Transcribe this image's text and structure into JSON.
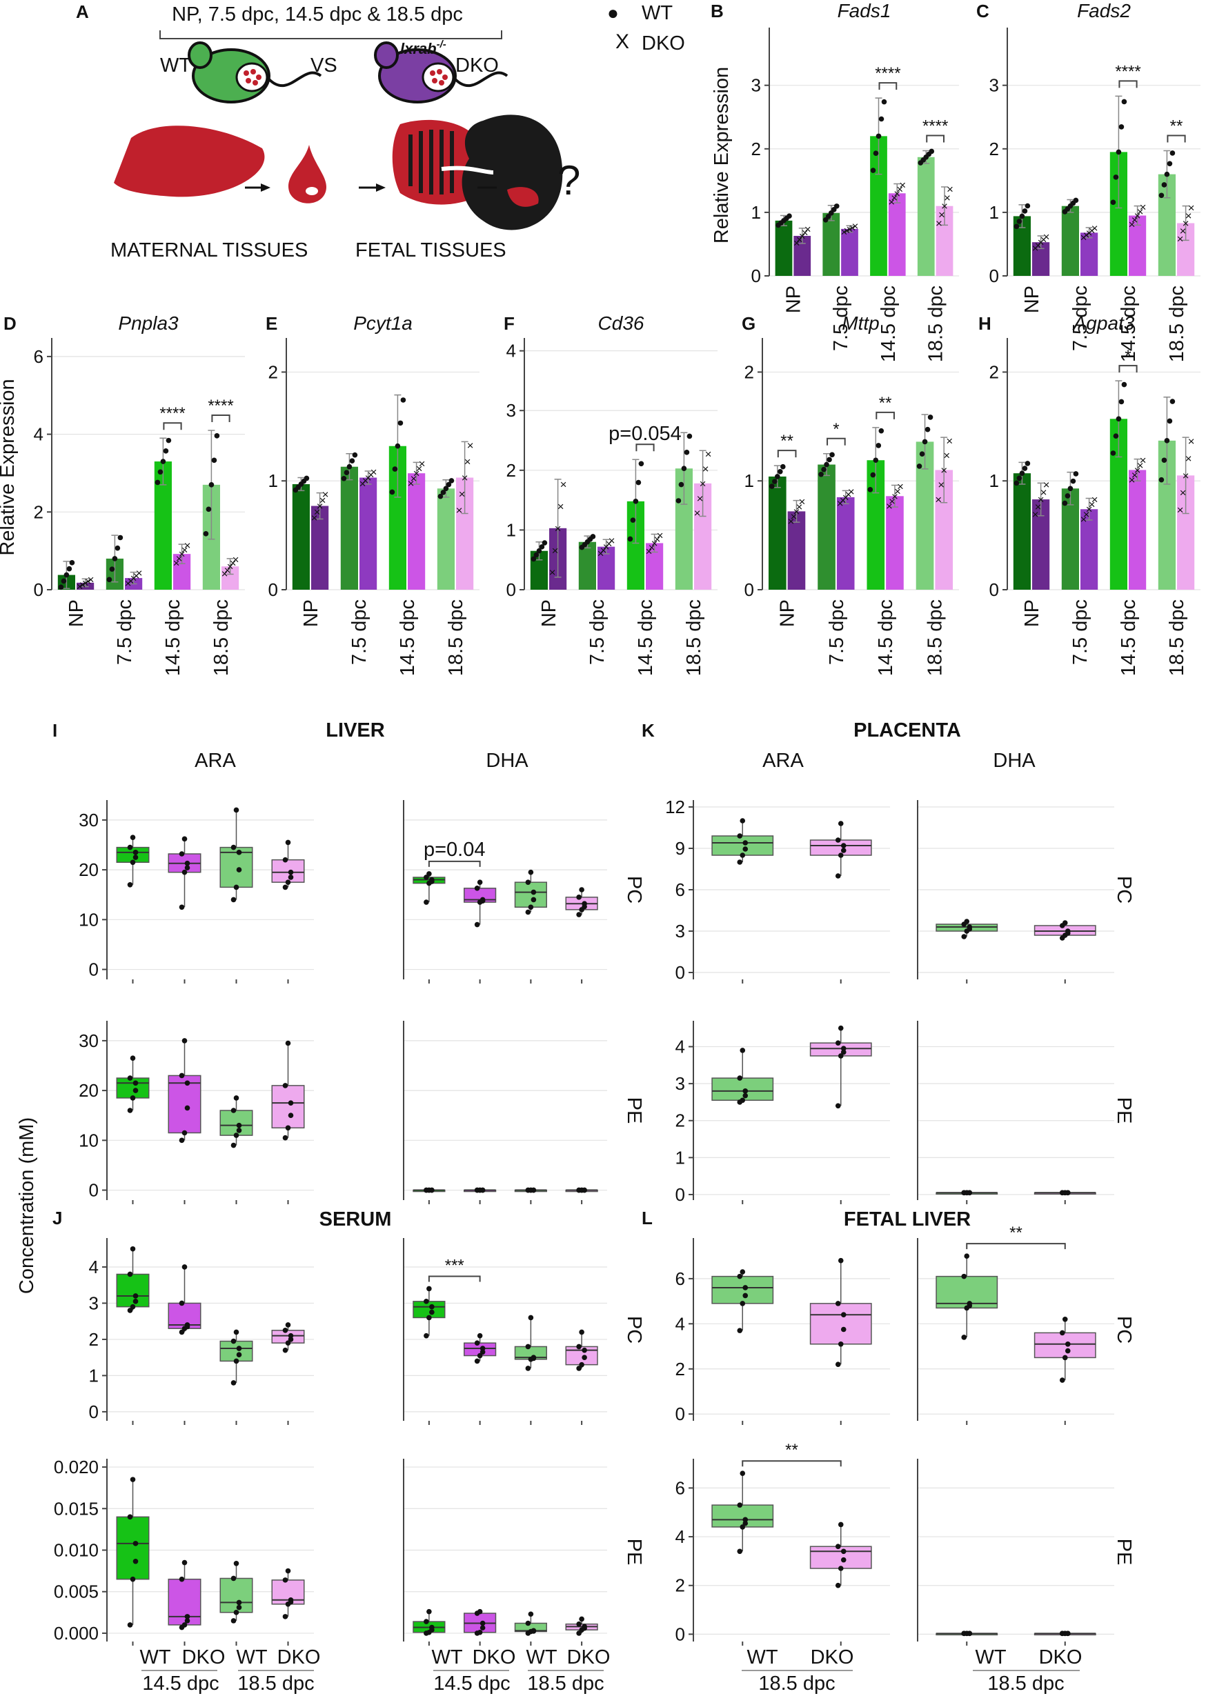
{
  "colors": {
    "np_wt": "#0b6b10",
    "np_dko": "#6a2a8e",
    "d75_wt": "#2f8f2f",
    "d75_dko": "#8e3ac0",
    "d145_wt": "#16c216",
    "d145_dko": "#cc55e6",
    "d185_wt": "#7ccf7c",
    "d185_dko": "#eeaaee",
    "liver_red": "#c0202c",
    "fetus_black": "#1a1a1a",
    "mouse_wt": "#4caf50",
    "mouse_dko": "#7b3fa3"
  },
  "panelA": {
    "letter": "A",
    "timepoints": "NP, 7.5 dpc, 14.5 dpc & 18.5 dpc",
    "wt": "WT",
    "vs": "VS",
    "gene": "lxrab",
    "gene_sup": "-/-",
    "dko": "DKO",
    "maternal": "MATERNAL TISSUES",
    "fetal": "FETAL TISSUES",
    "question": "?",
    "legend_wt_symbol": "●",
    "legend_wt": "WT",
    "legend_dko_symbol": "X",
    "legend_dko": "DKO"
  },
  "chart_data": [
    {
      "type": "bar",
      "panel": "B",
      "title": "Fads1",
      "ylabel": "Relative Expression",
      "ylim": [
        0,
        3.8
      ],
      "yticks": [
        0,
        1,
        2,
        3
      ],
      "categories": [
        "NP",
        "7.5 dpc",
        "14.5 dpc",
        "18.5 dpc"
      ],
      "series": [
        {
          "name": "WT",
          "values": [
            0.87,
            0.99,
            2.2,
            1.87
          ],
          "err": [
            0.08,
            0.12,
            0.6,
            0.1
          ]
        },
        {
          "name": "DKO",
          "values": [
            0.63,
            0.74,
            1.3,
            1.1
          ],
          "err": [
            0.12,
            0.05,
            0.15,
            0.3
          ]
        }
      ],
      "annotations": [
        {
          "group": 2,
          "label": "****"
        },
        {
          "group": 3,
          "label": "****"
        }
      ]
    },
    {
      "type": "bar",
      "panel": "C",
      "title": "Fads2",
      "ylabel": "",
      "ylim": [
        0,
        3.8
      ],
      "yticks": [
        0,
        1,
        2,
        3
      ],
      "categories": [
        "NP",
        "7.5 dpc",
        "14.5 dpc",
        "18.5 dpc"
      ],
      "series": [
        {
          "name": "WT",
          "values": [
            0.94,
            1.1,
            1.95,
            1.6
          ],
          "err": [
            0.18,
            0.1,
            0.88,
            0.37
          ]
        },
        {
          "name": "DKO",
          "values": [
            0.53,
            0.68,
            0.95,
            0.83
          ],
          "err": [
            0.1,
            0.08,
            0.15,
            0.27
          ]
        }
      ],
      "annotations": [
        {
          "group": 2,
          "label": "****"
        },
        {
          "group": 3,
          "label": "**"
        }
      ]
    },
    {
      "type": "bar",
      "panel": "D",
      "title": "Pnpla3",
      "ylabel": "Relative Expression",
      "ylim": [
        0,
        6.3
      ],
      "yticks": [
        0,
        2,
        4,
        6
      ],
      "categories": [
        "NP",
        "7.5 dpc",
        "14.5 dpc",
        "18.5 dpc"
      ],
      "series": [
        {
          "name": "WT",
          "values": [
            0.38,
            0.8,
            3.3,
            2.7
          ],
          "err": [
            0.35,
            0.6,
            0.6,
            1.4
          ]
        },
        {
          "name": "DKO",
          "values": [
            0.18,
            0.3,
            0.92,
            0.6
          ],
          "err": [
            0.1,
            0.15,
            0.25,
            0.2
          ]
        }
      ],
      "annotations": [
        {
          "group": 2,
          "label": "****"
        },
        {
          "group": 3,
          "label": "****"
        }
      ]
    },
    {
      "type": "bar",
      "panel": "E",
      "title": "Pcyt1a",
      "ylabel": "",
      "ylim": [
        0,
        2.25
      ],
      "yticks": [
        0,
        1,
        2
      ],
      "categories": [
        "NP",
        "7.5 dpc",
        "14.5 dpc",
        "18.5 dpc"
      ],
      "series": [
        {
          "name": "WT",
          "values": [
            0.97,
            1.13,
            1.32,
            0.93
          ],
          "err": [
            0.06,
            0.12,
            0.47,
            0.08
          ]
        },
        {
          "name": "DKO",
          "values": [
            0.77,
            1.03,
            1.07,
            1.03
          ],
          "err": [
            0.12,
            0.06,
            0.1,
            0.33
          ]
        }
      ],
      "annotations": []
    },
    {
      "type": "bar",
      "panel": "F",
      "title": "Cd36",
      "ylabel": "",
      "ylim": [
        0,
        4.1
      ],
      "yticks": [
        0,
        1,
        2,
        3,
        4
      ],
      "categories": [
        "NP",
        "7.5 dpc",
        "14.5 dpc",
        "18.5 dpc"
      ],
      "series": [
        {
          "name": "WT",
          "values": [
            0.65,
            0.8,
            1.48,
            2.03
          ],
          "err": [
            0.15,
            0.1,
            0.7,
            0.6
          ]
        },
        {
          "name": "DKO",
          "values": [
            1.03,
            0.72,
            0.78,
            1.78
          ],
          "err": [
            0.82,
            0.12,
            0.15,
            0.55
          ]
        }
      ],
      "annotations": [
        {
          "group": 2,
          "label": "p=0.054"
        }
      ]
    },
    {
      "type": "bar",
      "panel": "G",
      "title": "Mttp",
      "ylabel": "",
      "ylim": [
        0,
        2.25
      ],
      "yticks": [
        0,
        1,
        2
      ],
      "categories": [
        "NP",
        "7.5 dpc",
        "14.5 dpc",
        "18.5 dpc"
      ],
      "series": [
        {
          "name": "WT",
          "values": [
            1.04,
            1.15,
            1.19,
            1.36
          ],
          "err": [
            0.1,
            0.1,
            0.3,
            0.25
          ]
        },
        {
          "name": "DKO",
          "values": [
            0.72,
            0.85,
            0.86,
            1.1
          ],
          "err": [
            0.1,
            0.06,
            0.1,
            0.3
          ]
        }
      ],
      "annotations": [
        {
          "group": 0,
          "label": "**"
        },
        {
          "group": 1,
          "label": "*"
        },
        {
          "group": 2,
          "label": "**"
        }
      ]
    },
    {
      "type": "bar",
      "panel": "H",
      "title": "Agpat3",
      "ylabel": "",
      "ylim": [
        0,
        2.25
      ],
      "yticks": [
        0,
        1,
        2
      ],
      "categories": [
        "NP",
        "7.5 dpc",
        "14.5 dpc",
        "18.5 dpc"
      ],
      "series": [
        {
          "name": "WT",
          "values": [
            1.07,
            0.93,
            1.57,
            1.37
          ],
          "err": [
            0.1,
            0.15,
            0.35,
            0.4
          ]
        },
        {
          "name": "DKO",
          "values": [
            0.83,
            0.74,
            1.1,
            1.05
          ],
          "err": [
            0.15,
            0.1,
            0.1,
            0.35
          ]
        }
      ],
      "annotations": [
        {
          "group": 2,
          "label": "*"
        }
      ]
    },
    {
      "type": "box",
      "panel": "I",
      "tissue": "LIVER",
      "fa": "ARA",
      "lipid": "PC",
      "ylim": [
        -2,
        34
      ],
      "yticks": [
        0,
        10,
        20,
        30
      ],
      "groups": [
        "WT 14.5 dpc",
        "DKO 14.5 dpc",
        "WT 18.5 dpc",
        "DKO 18.5 dpc"
      ],
      "boxes": [
        [
          17,
          21.5,
          23.5,
          24.5,
          26.5
        ],
        [
          12.5,
          19.5,
          21.3,
          23.2,
          26.2
        ],
        [
          14,
          16.5,
          23.5,
          24.5,
          32
        ],
        [
          16.5,
          17.5,
          19.5,
          22,
          25.5
        ]
      ]
    },
    {
      "type": "box",
      "panel": "I",
      "tissue": "LIVER",
      "fa": "DHA",
      "lipid": "PC",
      "ylim": [
        -2,
        34
      ],
      "yticks": [
        0,
        10,
        20,
        30
      ],
      "groups": [
        "WT 14.5 dpc",
        "DKO 14.5 dpc",
        "WT 18.5 dpc",
        "DKO 18.5 dpc"
      ],
      "boxes": [
        [
          13.5,
          17.3,
          18,
          18.5,
          19.2
        ],
        [
          9,
          13.5,
          14,
          16.3,
          17.5
        ],
        [
          11.5,
          12.5,
          15.5,
          17.5,
          19.5
        ],
        [
          11,
          12,
          13.2,
          14.5,
          16
        ]
      ],
      "annotations": [
        {
          "from": 0,
          "to": 1,
          "label": "p=0.04"
        }
      ]
    },
    {
      "type": "box",
      "panel": "I",
      "tissue": "LIVER",
      "fa": "ARA",
      "lipid": "PE",
      "ylim": [
        -2,
        34
      ],
      "yticks": [
        0,
        10,
        20,
        30
      ],
      "groups": [
        "WT 14.5 dpc",
        "DKO 14.5 dpc",
        "WT 18.5 dpc",
        "DKO 18.5 dpc"
      ],
      "boxes": [
        [
          16,
          18.5,
          21.5,
          22.5,
          26.5
        ],
        [
          10,
          11.5,
          21.5,
          23,
          30
        ],
        [
          9,
          11,
          13,
          16,
          18.5
        ],
        [
          10.5,
          12.5,
          17.5,
          21,
          29.5
        ]
      ]
    },
    {
      "type": "box",
      "panel": "I",
      "tissue": "LIVER",
      "fa": "DHA",
      "lipid": "PE",
      "ylim": [
        -2,
        34
      ],
      "yticks": [
        0,
        10,
        20,
        30
      ],
      "groups": [
        "WT 14.5 dpc",
        "DKO 14.5 dpc",
        "WT 18.5 dpc",
        "DKO 18.5 dpc"
      ],
      "boxes": [
        [
          0,
          0,
          0,
          0,
          0
        ],
        [
          0,
          0,
          0,
          0,
          0
        ],
        [
          0,
          0,
          0,
          0,
          0
        ],
        [
          0,
          0,
          0,
          0,
          0
        ]
      ]
    },
    {
      "type": "box",
      "panel": "K",
      "tissue": "PLACENTA",
      "fa": "ARA",
      "lipid": "PC",
      "ylim": [
        -0.5,
        12.5
      ],
      "yticks": [
        0,
        3,
        6,
        9,
        12
      ],
      "groups": [
        "WT 18.5 dpc",
        "DKO 18.5 dpc"
      ],
      "boxes": [
        [
          8,
          8.5,
          9.4,
          9.9,
          11
        ],
        [
          7,
          8.5,
          9.2,
          9.6,
          10.8
        ]
      ]
    },
    {
      "type": "box",
      "panel": "K",
      "tissue": "PLACENTA",
      "fa": "DHA",
      "lipid": "PC",
      "ylim": [
        -0.5,
        12.5
      ],
      "yticks": [
        0,
        3,
        6,
        9,
        12
      ],
      "groups": [
        "WT 18.5 dpc",
        "DKO 18.5 dpc"
      ],
      "boxes": [
        [
          2.6,
          3,
          3.3,
          3.5,
          3.7
        ],
        [
          2.5,
          2.7,
          3,
          3.4,
          3.6
        ]
      ]
    },
    {
      "type": "box",
      "panel": "K",
      "tissue": "PLACENTA",
      "fa": "ARA",
      "lipid": "PE",
      "ylim": [
        -0.15,
        4.7
      ],
      "yticks": [
        0,
        1,
        2,
        3,
        4
      ],
      "groups": [
        "WT 18.5 dpc",
        "DKO 18.5 dpc"
      ],
      "boxes": [
        [
          2.5,
          2.55,
          2.8,
          3.15,
          3.9
        ],
        [
          2.4,
          3.75,
          3.95,
          4.1,
          4.5
        ]
      ]
    },
    {
      "type": "box",
      "panel": "K",
      "tissue": "PLACENTA",
      "fa": "DHA",
      "lipid": "PE",
      "ylim": [
        -0.15,
        4.7
      ],
      "yticks": [
        0,
        1,
        2,
        3,
        4
      ],
      "groups": [
        "WT 18.5 dpc",
        "DKO 18.5 dpc"
      ],
      "boxes": [
        [
          0.05,
          0.05,
          0.05,
          0.05,
          0.05
        ],
        [
          0.05,
          0.05,
          0.05,
          0.05,
          0.05
        ]
      ]
    },
    {
      "type": "box",
      "panel": "J",
      "tissue": "SERUM",
      "fa": "ARA",
      "lipid": "PC",
      "ylim": [
        -0.25,
        4.8
      ],
      "yticks": [
        0,
        1,
        2,
        3,
        4
      ],
      "groups": [
        "WT 14.5 dpc",
        "DKO 14.5 dpc",
        "WT 18.5 dpc",
        "DKO 18.5 dpc"
      ],
      "boxes": [
        [
          2.8,
          2.9,
          3.2,
          3.8,
          4.5
        ],
        [
          2.2,
          2.3,
          2.4,
          3,
          4
        ],
        [
          0.8,
          1.4,
          1.75,
          1.95,
          2.2
        ],
        [
          1.7,
          1.9,
          2.1,
          2.25,
          2.4
        ]
      ]
    },
    {
      "type": "box",
      "panel": "J",
      "tissue": "SERUM",
      "fa": "DHA",
      "lipid": "PC",
      "ylim": [
        -0.25,
        4.8
      ],
      "yticks": [
        0,
        1,
        2,
        3,
        4
      ],
      "groups": [
        "WT 14.5 dpc",
        "DKO 14.5 dpc",
        "WT 18.5 dpc",
        "DKO 18.5 dpc"
      ],
      "boxes": [
        [
          2.1,
          2.6,
          2.9,
          3.05,
          3.4
        ],
        [
          1.4,
          1.55,
          1.75,
          1.9,
          2.1
        ],
        [
          1.2,
          1.45,
          1.5,
          1.8,
          2.6
        ],
        [
          1.2,
          1.3,
          1.7,
          1.8,
          2.2
        ]
      ],
      "annotations": [
        {
          "from": 0,
          "to": 1,
          "label": "***"
        }
      ]
    },
    {
      "type": "box",
      "panel": "J",
      "tissue": "SERUM",
      "fa": "ARA",
      "lipid": "PE",
      "ylim": [
        -0.001,
        0.021
      ],
      "yticks": [
        0,
        0.005,
        0.01,
        0.015,
        0.02
      ],
      "ytick_labels": [
        "0.000",
        "0.005",
        "0.010",
        "0.015",
        "0.020"
      ],
      "groups": [
        "WT 14.5 dpc",
        "DKO 14.5 dpc",
        "WT 18.5 dpc",
        "DKO 18.5 dpc"
      ],
      "boxes": [
        [
          0.001,
          0.0065,
          0.0108,
          0.014,
          0.0185
        ],
        [
          0.0007,
          0.001,
          0.002,
          0.0065,
          0.0085
        ],
        [
          0.0015,
          0.0025,
          0.0037,
          0.0066,
          0.0084
        ],
        [
          0.002,
          0.0035,
          0.004,
          0.0064,
          0.0075
        ]
      ]
    },
    {
      "type": "box",
      "panel": "J",
      "tissue": "SERUM",
      "fa": "DHA",
      "lipid": "PE",
      "ylim": [
        -0.001,
        0.021
      ],
      "yticks": [
        0,
        0.005,
        0.01,
        0.015,
        0.02
      ],
      "groups": [
        "WT 14.5 dpc",
        "DKO 14.5 dpc",
        "WT 18.5 dpc",
        "DKO 18.5 dpc"
      ],
      "boxes": [
        [
          0,
          0.0001,
          0.0007,
          0.0014,
          0.0026
        ],
        [
          0,
          0.0001,
          0.0012,
          0.0024,
          0.0026
        ],
        [
          0,
          0.0002,
          0.0003,
          0.0012,
          0.0023
        ],
        [
          0,
          0.0004,
          0.0008,
          0.0011,
          0.0017
        ]
      ]
    },
    {
      "type": "box",
      "panel": "L",
      "tissue": "FETAL LIVER",
      "fa": "ARA",
      "lipid": "PC",
      "ylim": [
        -0.3,
        7.8
      ],
      "yticks": [
        0,
        2,
        4,
        6
      ],
      "groups": [
        "WT 18.5 dpc",
        "DKO 18.5 dpc"
      ],
      "boxes": [
        [
          3.7,
          4.9,
          5.6,
          6.1,
          6.3
        ],
        [
          2.2,
          3.1,
          4.4,
          4.9,
          6.8
        ]
      ]
    },
    {
      "type": "box",
      "panel": "L",
      "tissue": "FETAL LIVER",
      "fa": "DHA",
      "lipid": "PC",
      "ylim": [
        -0.3,
        7.8
      ],
      "yticks": [
        0,
        2,
        4,
        6
      ],
      "groups": [
        "WT 18.5 dpc",
        "DKO 18.5 dpc"
      ],
      "boxes": [
        [
          3.4,
          4.7,
          4.9,
          6.1,
          7
        ],
        [
          1.5,
          2.5,
          3.1,
          3.6,
          4.2
        ]
      ],
      "annotations": [
        {
          "from": 0,
          "to": 1,
          "label": "**"
        }
      ]
    },
    {
      "type": "box",
      "panel": "L",
      "tissue": "FETAL LIVER",
      "fa": "ARA",
      "lipid": "PE",
      "ylim": [
        -0.3,
        7.2
      ],
      "yticks": [
        0,
        2,
        4,
        6
      ],
      "groups": [
        "WT 18.5 dpc",
        "DKO 18.5 dpc"
      ],
      "boxes": [
        [
          3.4,
          4.4,
          4.7,
          5.3,
          6.6
        ],
        [
          2,
          2.7,
          3.4,
          3.6,
          4.5
        ]
      ],
      "annotations": [
        {
          "from": 0,
          "to": 1,
          "label": "**"
        }
      ]
    },
    {
      "type": "box",
      "panel": "L",
      "tissue": "FETAL LIVER",
      "fa": "DHA",
      "lipid": "PE",
      "ylim": [
        -0.3,
        7.2
      ],
      "yticks": [
        0,
        2,
        4,
        6
      ],
      "groups": [
        "WT 18.5 dpc",
        "DKO 18.5 dpc"
      ],
      "boxes": [
        [
          0.03,
          0.03,
          0.03,
          0.03,
          0.03
        ],
        [
          0.03,
          0.03,
          0.03,
          0.03,
          0.03
        ]
      ]
    }
  ],
  "lipid_labels": {
    "section_I": "I",
    "section_J": "J",
    "section_K": "K",
    "section_L": "L",
    "liver": "LIVER",
    "serum": "SERUM",
    "placenta": "PLACENTA",
    "fetal_liver": "FETAL LIVER",
    "ara": "ARA",
    "dha": "DHA",
    "pc": "PC",
    "pe": "PE",
    "ylabel": "Concentration (mM)",
    "wt": "WT",
    "dko": "DKO",
    "d145": "14.5 dpc",
    "d185": "18.5 dpc"
  }
}
